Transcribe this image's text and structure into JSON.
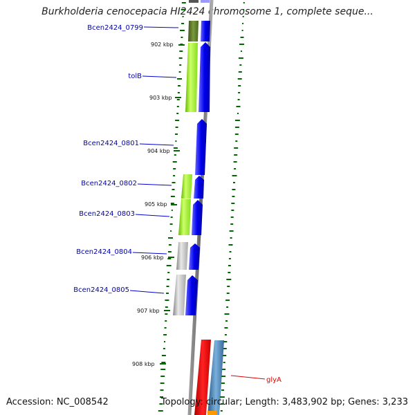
{
  "title": "Burkholderia cenocepacia HI2424 chromosome 1, complete seque...",
  "accession": "Accession: NC_008542",
  "topology": "Topology: circular; Length: 3,483,902 bp; Genes: 3,233",
  "ticks": [
    "902 kbp",
    "903 kbp",
    "904 kbp",
    "905 kbp",
    "906 kbp",
    "907 kbp",
    "908 kbp"
  ],
  "genes": [
    {
      "label": "Bcen2424_0799",
      "color": "#0000cc"
    },
    {
      "label": "tolB",
      "color": "#0000cc"
    },
    {
      "label": "Bcen2424_0801",
      "color": "#0000cc"
    },
    {
      "label": "Bcen2424_0802",
      "color": "#0000cc"
    },
    {
      "label": "Bcen2424_0803",
      "color": "#0000cc"
    },
    {
      "label": "Bcen2424_0804",
      "color": "#0000cc"
    },
    {
      "label": "Bcen2424_0805",
      "color": "#0000cc"
    },
    {
      "label": "glyA",
      "color": "#dd0000"
    }
  ],
  "colors": {
    "backbone": "#888888",
    "cds_forward": "#0000ee",
    "cog_green_light": "#99ee22",
    "cog_green_dark": "#5a7a2a",
    "cog_grey": "#b0b0b0",
    "cog_red": "#ee0000",
    "cog_steel": "#4682b4",
    "gc_marks": "#006600"
  }
}
